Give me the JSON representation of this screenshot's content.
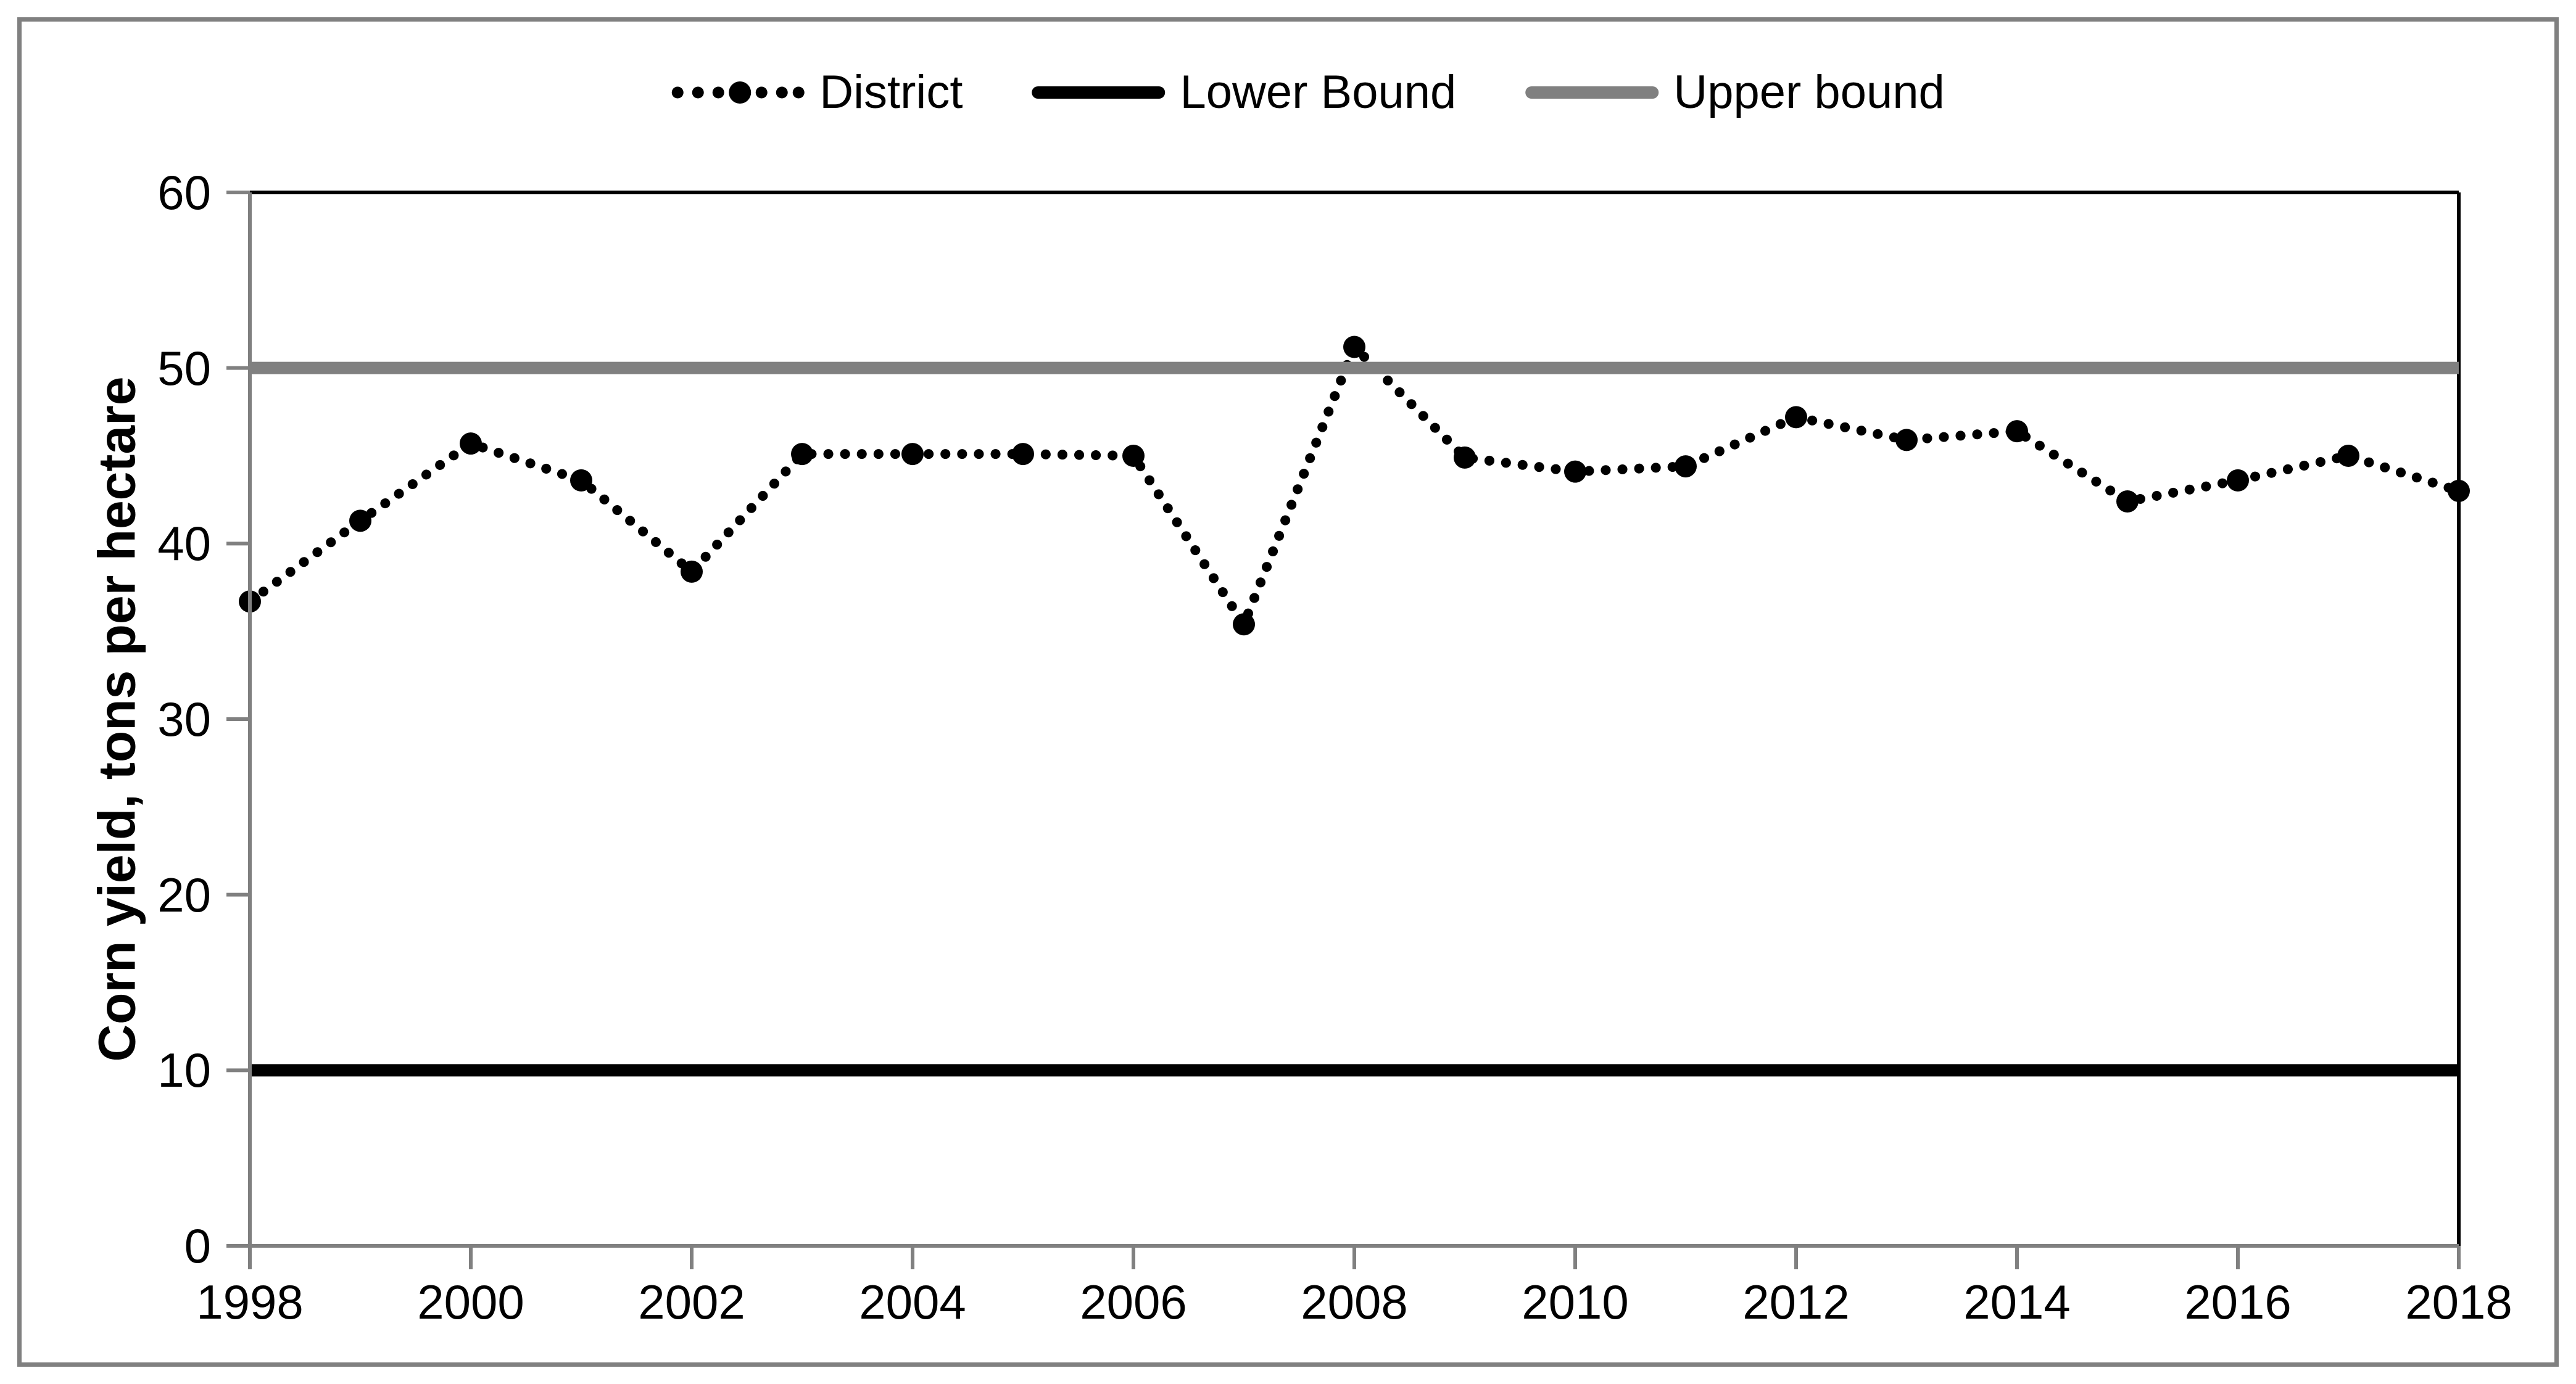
{
  "figure": {
    "background": "#ffffff",
    "border_color": "#808080"
  },
  "chart_data": {
    "type": "line",
    "title": "",
    "xlabel": "",
    "ylabel": "Corn yield, tons per hectare",
    "x": [
      1998,
      1999,
      2000,
      2001,
      2002,
      2003,
      2004,
      2005,
      2006,
      2007,
      2008,
      2009,
      2010,
      2011,
      2012,
      2013,
      2014,
      2015,
      2016,
      2017,
      2018
    ],
    "series": [
      {
        "name": "District",
        "kind": "dotted_line_with_markers",
        "color": "#000000",
        "values": [
          36.7,
          41.3,
          45.7,
          43.6,
          38.4,
          45.1,
          45.1,
          45.1,
          45.0,
          35.4,
          51.2,
          44.9,
          44.1,
          44.4,
          47.2,
          45.9,
          46.4,
          42.4,
          43.6,
          45.0,
          43.0
        ]
      },
      {
        "name": "Lower Bound",
        "kind": "hline",
        "color": "#000000",
        "value": 10
      },
      {
        "name": "Upper bound",
        "kind": "hline",
        "color": "#808080",
        "value": 50
      }
    ],
    "ylim": [
      0,
      60
    ],
    "yticks": [
      0,
      10,
      20,
      30,
      40,
      50,
      60
    ],
    "xticks": [
      1998,
      2000,
      2002,
      2004,
      2006,
      2008,
      2010,
      2012,
      2014,
      2016,
      2018
    ],
    "grid": false,
    "legend_position": "top-center",
    "axis_color": "#808080",
    "plot_border_color": "#000000"
  }
}
